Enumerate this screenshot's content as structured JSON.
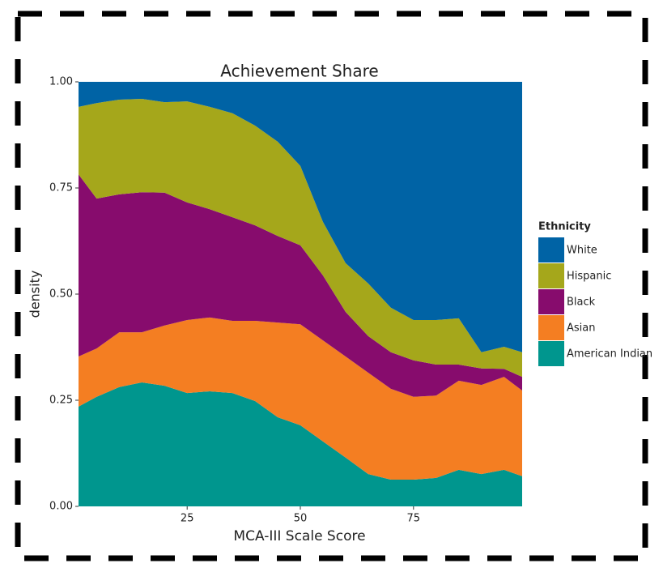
{
  "chart_data": {
    "type": "area",
    "title": "Achievement Share",
    "x_label": "MCA-III Scale Score",
    "y_label": "density",
    "legend_title": "Ethnicity",
    "legend": "right",
    "stacked": true,
    "x": [
      1,
      5,
      10,
      15,
      20,
      25,
      30,
      35,
      40,
      45,
      50,
      55,
      60,
      65,
      70,
      75,
      80,
      85,
      90,
      95,
      99
    ],
    "series": [
      {
        "name": "White",
        "color": "#0063a5",
        "values": [
          0.059,
          0.05,
          0.042,
          0.04,
          0.048,
          0.046,
          0.059,
          0.074,
          0.103,
          0.141,
          0.198,
          0.33,
          0.427,
          0.475,
          0.532,
          0.561,
          0.561,
          0.557,
          0.637,
          0.624,
          0.637
        ]
      },
      {
        "name": "Hispanic",
        "color": "#a5a71b",
        "values": [
          0.159,
          0.225,
          0.223,
          0.22,
          0.213,
          0.238,
          0.241,
          0.245,
          0.235,
          0.222,
          0.187,
          0.126,
          0.115,
          0.124,
          0.105,
          0.095,
          0.105,
          0.109,
          0.038,
          0.052,
          0.058
        ]
      },
      {
        "name": "Black",
        "color": "#870c6d",
        "values": [
          0.429,
          0.353,
          0.325,
          0.33,
          0.313,
          0.277,
          0.255,
          0.244,
          0.225,
          0.204,
          0.186,
          0.153,
          0.105,
          0.086,
          0.086,
          0.086,
          0.073,
          0.038,
          0.039,
          0.019,
          0.032
        ]
      },
      {
        "name": "Asian",
        "color": "#f47e22",
        "values": [
          0.118,
          0.114,
          0.129,
          0.118,
          0.142,
          0.172,
          0.174,
          0.17,
          0.189,
          0.223,
          0.238,
          0.238,
          0.238,
          0.239,
          0.214,
          0.195,
          0.194,
          0.21,
          0.21,
          0.219,
          0.202
        ]
      },
      {
        "name": "American Indian",
        "color": "#00968e",
        "values": [
          0.235,
          0.258,
          0.281,
          0.292,
          0.284,
          0.267,
          0.271,
          0.267,
          0.248,
          0.21,
          0.191,
          0.153,
          0.115,
          0.076,
          0.063,
          0.063,
          0.067,
          0.086,
          0.076,
          0.086,
          0.071
        ]
      }
    ],
    "xlim": [
      1,
      99
    ],
    "xticks": [
      25,
      50,
      75
    ],
    "ylim": [
      0,
      1
    ],
    "yticks": [
      {
        "value": 0,
        "label": "0.00"
      },
      {
        "value": 0.25,
        "label": "0.25"
      },
      {
        "value": 0.5,
        "label": "0.50"
      },
      {
        "value": 0.75,
        "label": "0.75"
      },
      {
        "value": 1,
        "label": "1.00"
      }
    ]
  }
}
